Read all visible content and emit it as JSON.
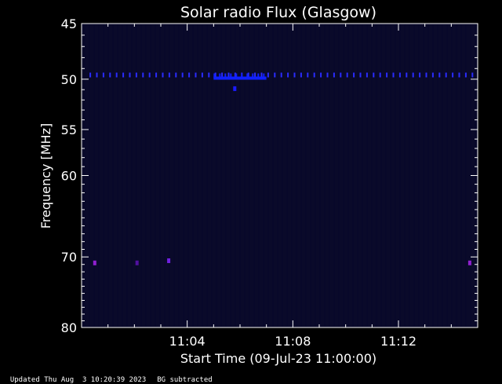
{
  "chart_data": {
    "type": "heatmap",
    "title": "Solar radio Flux (Glasgow)",
    "xlabel": "Start Time (09-Jul-23 11:00:00)",
    "ylabel": "Frequency [MHz]",
    "x_ticks": [
      {
        "label": "11:04",
        "minutes": 4
      },
      {
        "label": "11:08",
        "minutes": 8
      },
      {
        "label": "11:12",
        "minutes": 12
      }
    ],
    "xlim_minutes": [
      0,
      15
    ],
    "y_ticks": [
      45,
      50,
      55,
      60,
      70,
      80
    ],
    "ylim": [
      45,
      80
    ],
    "y_scale": "log",
    "background_color": "#000000",
    "plot_color": "#0a0a2a",
    "features": [
      {
        "type": "band",
        "freq_mhz": 49.6,
        "t_start_min": 0.3,
        "t_end_min": 14.9,
        "color": "#2a2cff",
        "style": "dashed"
      },
      {
        "type": "band",
        "freq_mhz": 49.9,
        "t_start_min": 5.0,
        "t_end_min": 7.0,
        "color": "#1020ff",
        "style": "solid"
      },
      {
        "type": "spot",
        "freq_mhz": 50.9,
        "t_min": 5.8,
        "color": "#1a1aff"
      },
      {
        "type": "spot",
        "freq_mhz": 70.8,
        "t_min": 0.5,
        "color": "#9020d0"
      },
      {
        "type": "spot",
        "freq_mhz": 70.8,
        "t_min": 2.1,
        "color": "#5010a0"
      },
      {
        "type": "spot",
        "freq_mhz": 70.5,
        "t_min": 3.3,
        "color": "#7020e0"
      },
      {
        "type": "spot",
        "freq_mhz": 70.8,
        "t_min": 14.7,
        "color": "#9020d0"
      }
    ]
  },
  "footer": {
    "updated": "Updated Thu Aug  3 10:20:39 2023",
    "bg_note": "BG subtracted"
  }
}
